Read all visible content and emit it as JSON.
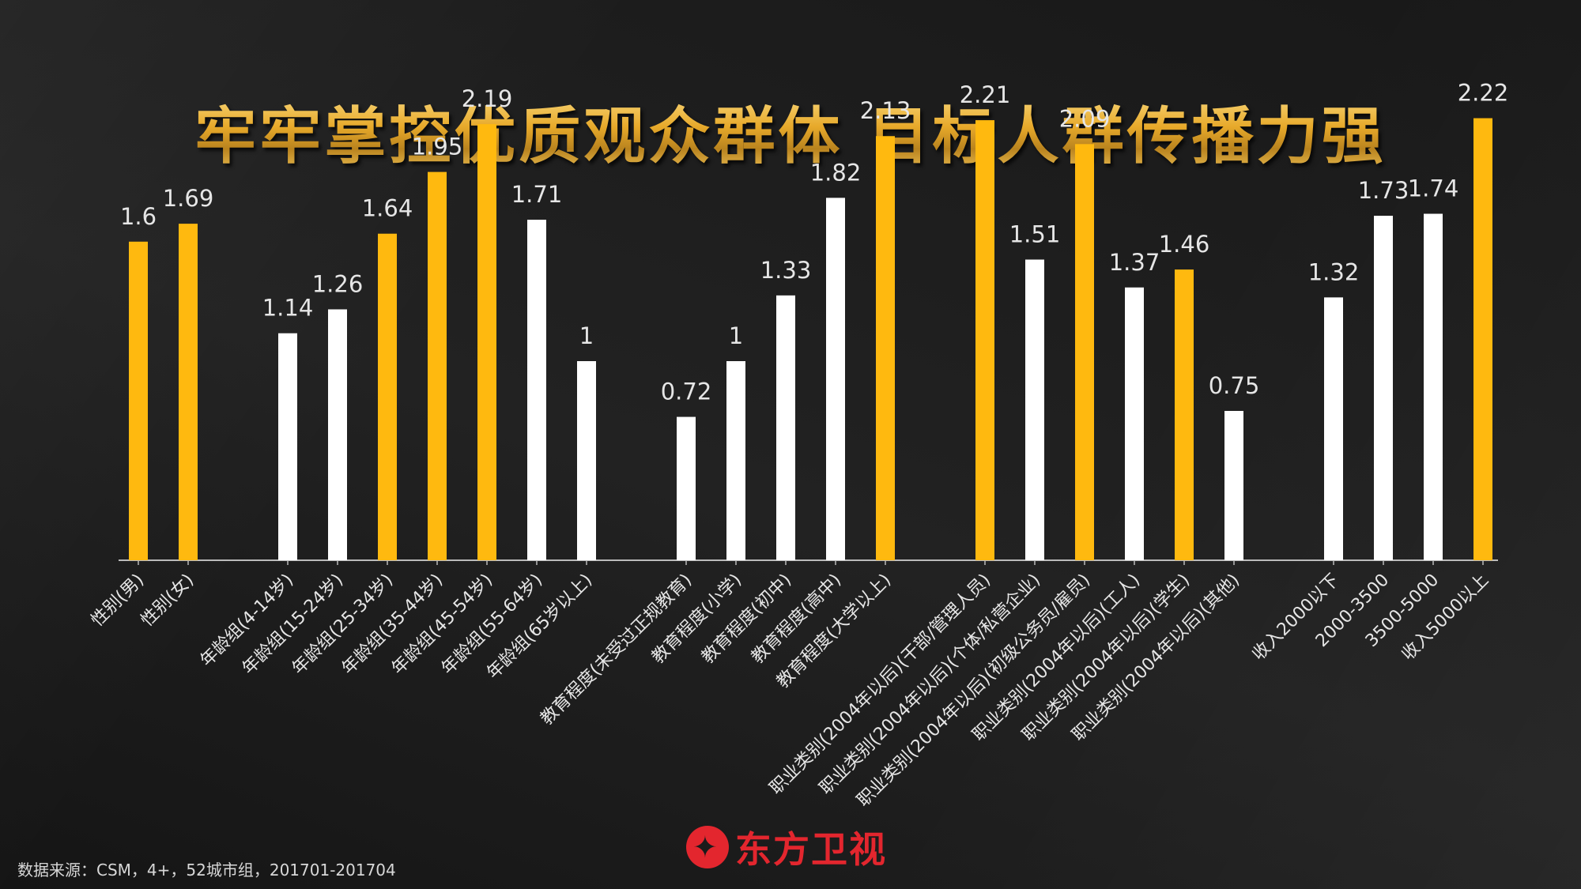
{
  "title": "牢牢掌控优质观众群体 目标人群传播力强",
  "source": "数据来源：CSM，4+，52城市组，201701-201704",
  "logo": {
    "icon": "dragonfly-logo-icon",
    "text": "东方卫视"
  },
  "colors": {
    "highlight": "#FFB90F",
    "normal": "#FFFFFF",
    "axis": "#BBBBBB",
    "label": "#E6E6E6",
    "logo": "#E3262E"
  },
  "chart_data": {
    "type": "bar",
    "title": "",
    "xlabel": "",
    "ylabel": "",
    "ylim": [
      0,
      2.3
    ],
    "grid": false,
    "categories": [
      "性别(男)",
      "性别(女)",
      "年龄组(4-14岁)",
      "年龄组(15-24岁)",
      "年龄组(25-34岁)",
      "年龄组(35-44岁)",
      "年龄组(45-54岁)",
      "年龄组(55-64岁)",
      "年龄组(65岁以上)",
      "教育程度(未受过正规教育)",
      "教育程度(小学)",
      "教育程度(初中)",
      "教育程度(高中)",
      "教育程度(大学以上)",
      "职业类别(2004年以后)(干部/管理人员)",
      "职业类别(2004年以后)(个体/私营企业)",
      "职业类别(2004年以后)(初级公务员/雇员)",
      "职业类别(2004年以后)(工人)",
      "职业类别(2004年以后)(学生)",
      "职业类别(2004年以后)(其他)",
      "收入2000以下",
      "2000-3500",
      "3500-5000",
      "收入5000以上"
    ],
    "values": [
      1.6,
      1.69,
      1.14,
      1.26,
      1.64,
      1.95,
      2.19,
      1.71,
      1,
      0.72,
      1,
      1.33,
      1.82,
      2.13,
      2.21,
      1.51,
      2.09,
      1.37,
      1.46,
      0.75,
      1.32,
      1.73,
      1.74,
      2.22
    ],
    "value_labels": [
      "1.6",
      "1.69",
      "1.14",
      "1.26",
      "1.64",
      "1.95",
      "2.19",
      "1.71",
      "1",
      "0.72",
      "1",
      "1.33",
      "1.82",
      "2.13",
      "2.21",
      "1.51",
      "2.09",
      "1.37",
      "1.46",
      "0.75",
      "1.32",
      "1.73",
      "1.74",
      "2.22"
    ],
    "highlighted": [
      true,
      true,
      false,
      false,
      true,
      true,
      true,
      false,
      false,
      false,
      false,
      false,
      false,
      true,
      true,
      false,
      true,
      false,
      true,
      false,
      false,
      false,
      false,
      true
    ]
  }
}
